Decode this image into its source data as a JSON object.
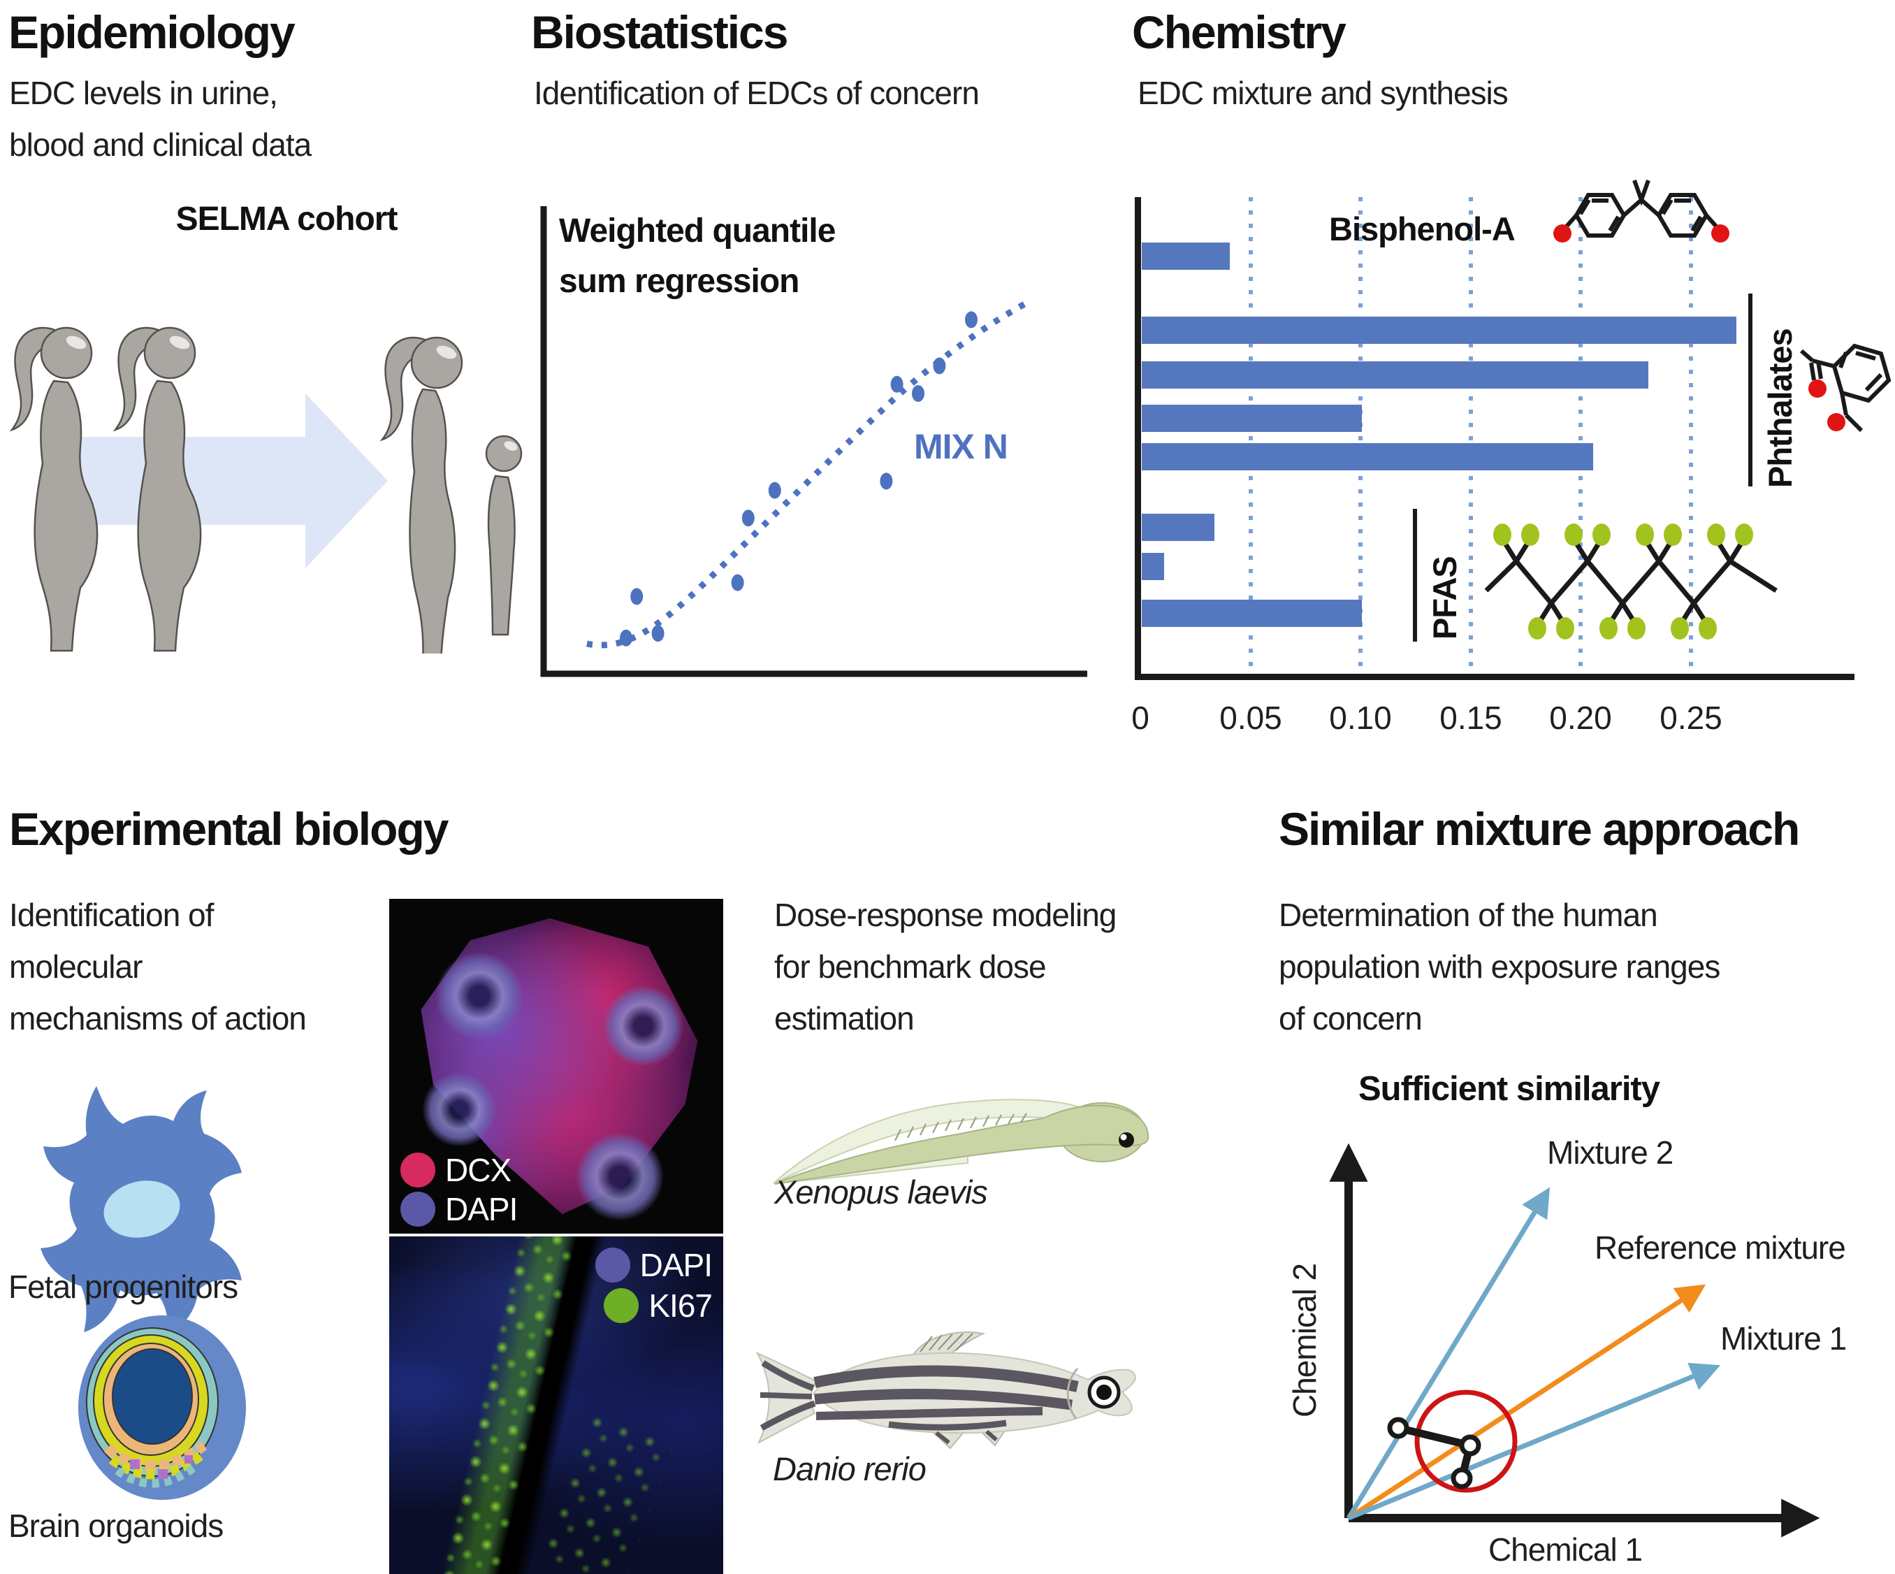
{
  "figure": {
    "type": "scientific workflow figure",
    "background": "#ffffff",
    "text_color": "#1a1a1a"
  },
  "panels": {
    "epidemiology": {
      "title": "Epidemiology",
      "subtitle_lines": [
        "EDC levels in urine,",
        "blood and clinical data"
      ],
      "cohort_label": "SELMA cohort",
      "illustration": "two pregnant women, light-blue arrow, mother and child",
      "arrow_color": "#dce6f6",
      "figure_color": "#aaa7a2"
    },
    "biostatistics": {
      "title": "Biostatistics",
      "subtitle": "Identification of EDCs of concern",
      "plot_title_lines": [
        "Weighted quantile",
        "sum regression"
      ]
    },
    "chemistry": {
      "title": "Chemistry",
      "subtitle": "EDC mixture and synthesis",
      "labels": {
        "bisphenol": "Bisphenol-A",
        "phthalates": "Phthalates",
        "pfas": "PFAS"
      },
      "structure_colors": {
        "bond": "#1a1a1a",
        "oxygen_red": "#e11414",
        "fluorine_green": "#a2c31d"
      }
    },
    "experimental_biology": {
      "title": "Experimental biology",
      "description_lines": [
        "Identification of",
        "molecular",
        "mechanisms of action"
      ],
      "fetal_progenitors_label": "Fetal progenitors",
      "brain_organoids_label": "Brain organoids",
      "organoid_image_legend": [
        {
          "label": "DCX",
          "color": "#d72a5e"
        },
        {
          "label": "DAPI",
          "color": "#5c58a8"
        }
      ],
      "rosette_image_legend": [
        {
          "label": "DAPI",
          "color": "#5c58a8"
        },
        {
          "label": "KI67",
          "color": "#6fae27"
        }
      ],
      "dose_response_lines": [
        "Dose-response modeling",
        "for benchmark dose",
        "estimation"
      ],
      "xenopus_label": "Xenopus laevis",
      "danio_label": "Danio rerio"
    },
    "similar_mixture": {
      "title": "Similar mixture approach",
      "description_lines": [
        "Determination of the human",
        "population with exposure ranges",
        "of concern"
      ],
      "plot_title": "Sufficient similarity"
    }
  },
  "chart_data": [
    {
      "id": "wqs_scatter",
      "type": "scatter",
      "title": "Weighted quantile sum regression",
      "xlabel": "",
      "ylabel": "",
      "axis_tick_labels": "none shown",
      "trend": "dotted sigmoid regression curve rising from lower left to upper right",
      "series": [
        {
          "name": "MIX N",
          "color": "#4d72bf",
          "points_norm": [
            [
              0.15,
              0.07
            ],
            [
              0.21,
              0.08
            ],
            [
              0.17,
              0.16
            ],
            [
              0.36,
              0.19
            ],
            [
              0.38,
              0.33
            ],
            [
              0.43,
              0.39
            ],
            [
              0.64,
              0.41
            ],
            [
              0.66,
              0.62
            ],
            [
              0.7,
              0.6
            ],
            [
              0.74,
              0.66
            ],
            [
              0.8,
              0.76
            ]
          ]
        }
      ]
    },
    {
      "id": "edc_mixture_bars",
      "type": "bar",
      "orientation": "horizontal",
      "title": "EDC mixture and synthesis",
      "groups": [
        {
          "label": "Bisphenol-A",
          "values": [
            0.04
          ]
        },
        {
          "label": "Phthalates",
          "values": [
            0.27,
            0.23,
            0.1,
            0.205
          ]
        },
        {
          "label": "PFAS",
          "values": [
            0.033,
            0.01,
            0.1
          ]
        }
      ],
      "xticks": [
        {
          "value": 0,
          "label": "0"
        },
        {
          "value": 0.05,
          "label": "0.05"
        },
        {
          "value": 0.1,
          "label": "0.10"
        },
        {
          "value": 0.15,
          "label": "0.15"
        },
        {
          "value": 0.2,
          "label": "0.20"
        },
        {
          "value": 0.25,
          "label": "0.25"
        }
      ],
      "xlim": [
        0,
        0.3
      ],
      "bar_color": "#5577bd",
      "gridline_color": "#7aa2d8",
      "gridline_style": "dotted vertical"
    },
    {
      "id": "sufficient_similarity",
      "type": "diagram",
      "title": "Sufficient similarity",
      "xlabel": "Chemical 1",
      "ylabel": "Chemical 2",
      "vectors": [
        {
          "name": "Mixture 2",
          "color": "#6fa8c8"
        },
        {
          "name": "Reference mixture",
          "color": "#f28c1c"
        },
        {
          "name": "Mixture 1",
          "color": "#6fa8c8"
        }
      ],
      "annotation": "red circle enclosing three linked sample points near the reference vector",
      "annotation_color": "#cc1414",
      "marker_link_color": "#1a1a1a"
    }
  ]
}
